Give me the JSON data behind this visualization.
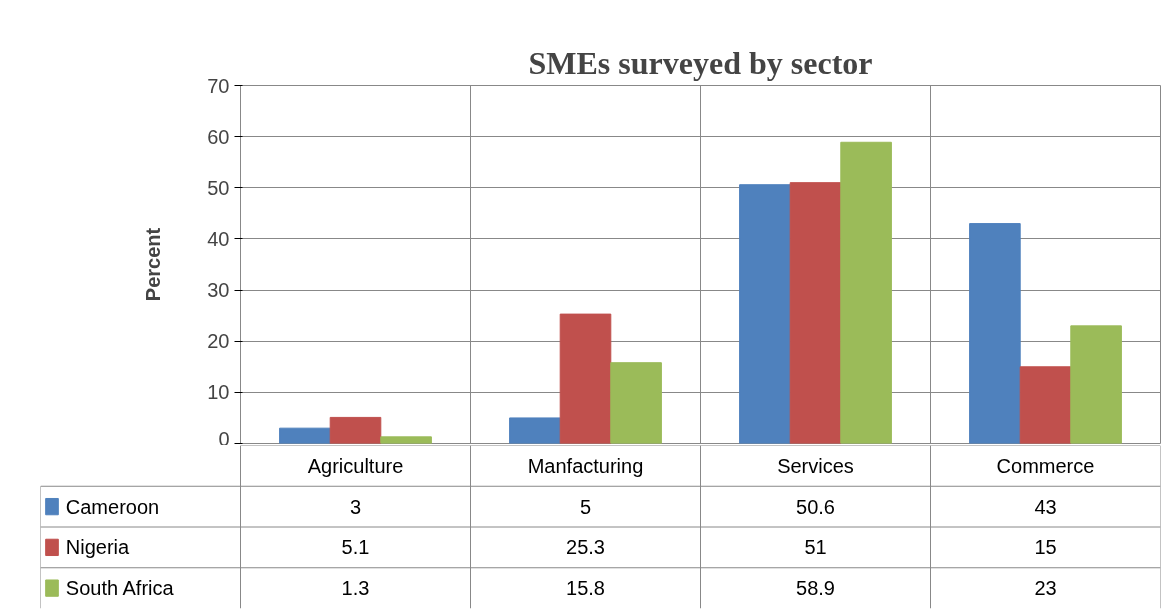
{
  "chart_data": {
    "type": "bar",
    "title": "SMEs surveyed by sector",
    "ylabel": "Percent",
    "categories": [
      "Agriculture",
      "Manfacturing",
      "Services",
      "Commerce"
    ],
    "series": [
      {
        "name": "Cameroon",
        "color": "#4f81bd",
        "values": [
          3,
          5,
          50.6,
          43
        ]
      },
      {
        "name": "Nigeria",
        "color": "#c0504d",
        "values": [
          5.1,
          25.3,
          51,
          15
        ]
      },
      {
        "name": "South Africa",
        "color": "#9bbb59",
        "values": [
          1.3,
          15.8,
          58.9,
          23
        ]
      }
    ],
    "ylim": [
      0,
      70
    ],
    "yticks": [
      0,
      10,
      20,
      30,
      40,
      50,
      60,
      70
    ],
    "grid": "y",
    "legend": "bottom",
    "data_labels": true
  }
}
